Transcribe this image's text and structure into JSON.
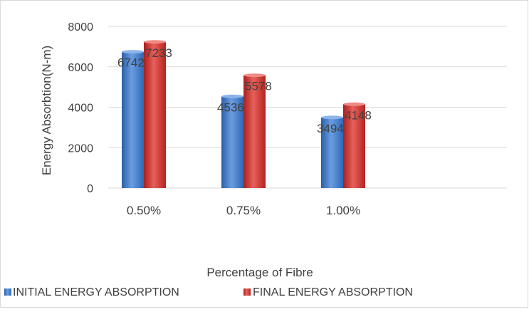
{
  "chart_data": {
    "type": "bar",
    "categories": [
      "0.50%",
      "0.75%",
      "1.00%"
    ],
    "series": [
      {
        "name": "INITIAL ENERGY ABSORPTION",
        "values": [
          6742,
          4536,
          3494
        ],
        "color": "#3a73c4"
      },
      {
        "name": "FINAL ENERGY ABSORPTION",
        "values": [
          7233,
          5578,
          4148
        ],
        "color": "#d0312d"
      }
    ],
    "xlabel": "Percentage of Fibre",
    "ylabel": "Energy Absorbtion(N-m)",
    "ylim": [
      0,
      8000
    ],
    "yticks": [
      0,
      2000,
      4000,
      6000,
      8000
    ],
    "grid": true,
    "legend_position": "bottom-left"
  }
}
